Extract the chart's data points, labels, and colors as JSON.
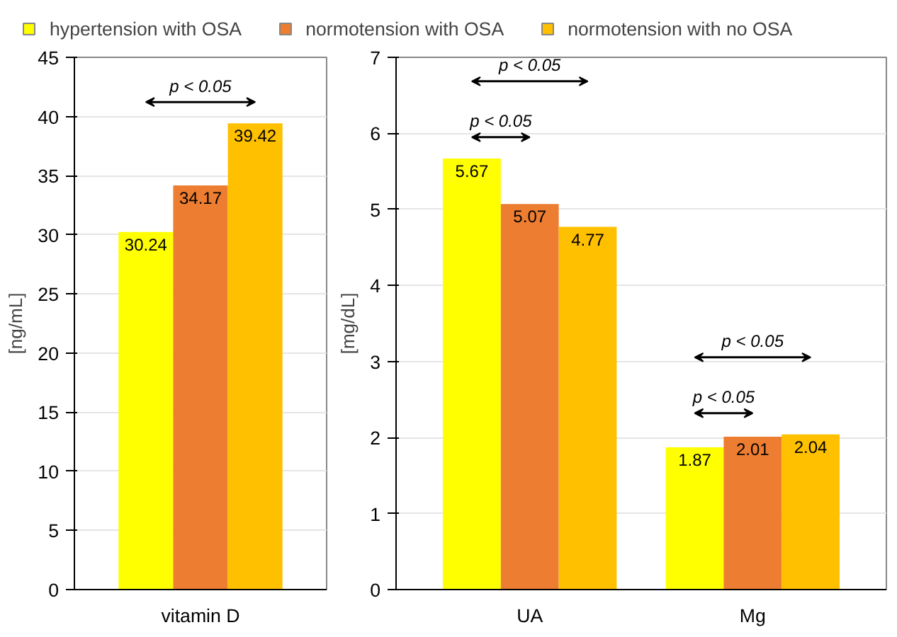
{
  "chart_data": [
    {
      "type": "bar",
      "categories": [
        "vitamin D"
      ],
      "ylabel": "[ng/mL]",
      "ylim": [
        0,
        45
      ],
      "yticks": [
        0,
        5,
        10,
        15,
        20,
        25,
        30,
        35,
        40,
        45
      ],
      "grid": "y",
      "legend": "top",
      "data_labels": true,
      "series": [
        {
          "name": "hypertension with OSA",
          "color": "#ffff00",
          "values": [
            30.24
          ]
        },
        {
          "name": "normotension with OSA",
          "color": "#ed7d31",
          "values": [
            34.17
          ]
        },
        {
          "name": "normotension with no OSA",
          "color": "#ffc000",
          "values": [
            39.42
          ]
        }
      ],
      "annotations": [
        "p < 0.05"
      ]
    },
    {
      "type": "bar",
      "categories": [
        "UA",
        "Mg"
      ],
      "ylabel": "[mg/dL]",
      "ylim": [
        0,
        7
      ],
      "yticks": [
        0,
        1,
        2,
        3,
        4,
        5,
        6,
        7
      ],
      "grid": "y",
      "data_labels": true,
      "series": [
        {
          "color": "#ffff00",
          "values": [
            5.67,
            1.87
          ]
        },
        {
          "color": "#ed7d31",
          "values": [
            5.07,
            2.01
          ]
        },
        {
          "color": "#ffc000",
          "values": [
            4.77,
            2.04
          ]
        }
      ],
      "annotations": [
        "p < 0.05",
        "p < 0.05",
        "p < 0.05",
        "p < 0.05"
      ]
    }
  ]
}
